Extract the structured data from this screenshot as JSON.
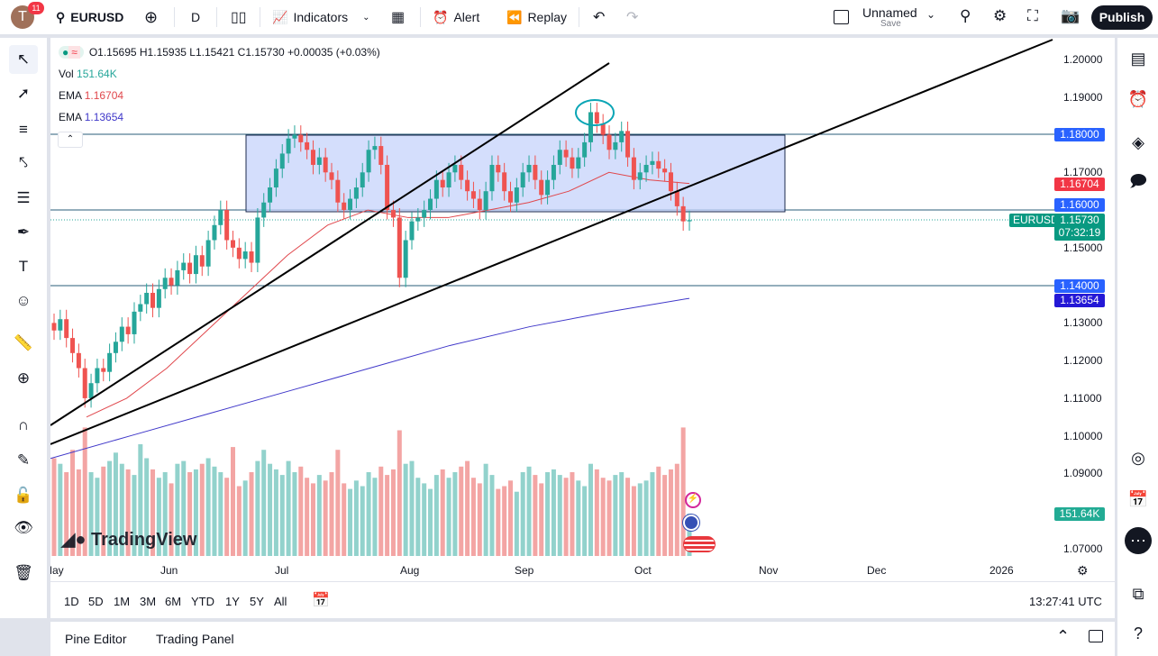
{
  "topbar": {
    "avatar_letter": "T",
    "notif_count": "11",
    "symbol": "EURUSD",
    "interval": "D",
    "indicators": "Indicators",
    "alert": "Alert",
    "replay": "Replay",
    "layout_name": "Unnamed",
    "layout_save": "Save",
    "publish": "Publish"
  },
  "legend": {
    "ohlc": "O1.15695 H1.15935 L1.15421 C1.15730 +0.00035 (+0.03%)",
    "vol_label": "Vol",
    "vol_value": "151.64K",
    "ema1_label": "EMA",
    "ema1_value": "1.16704",
    "ema2_label": "EMA",
    "ema2_value": "1.13654"
  },
  "price_axis": {
    "ticks": [
      "1.20000",
      "1.19000",
      "1.17000",
      "1.15000",
      "1.13000",
      "1.12000",
      "1.11000",
      "1.10000",
      "1.09000",
      "1.07000"
    ],
    "labels": {
      "level_118": "1.18000",
      "ema1": "1.16704",
      "level_116": "1.16000",
      "symbol_tag": "EURUSD",
      "last": "1.15730",
      "countdown": "07:32:19",
      "level_114": "1.14000",
      "ema2": "1.13654",
      "volume": "151.64K"
    }
  },
  "time_axis": {
    "ticks": [
      "May",
      "Jun",
      "Jul",
      "Aug",
      "Sep",
      "Oct",
      "Nov",
      "Dec",
      "2026"
    ]
  },
  "range_bar": {
    "ranges": [
      "1D",
      "5D",
      "1M",
      "3M",
      "6M",
      "YTD",
      "1Y",
      "5Y",
      "All"
    ],
    "clock": "13:27:41 UTC"
  },
  "bottom_panel": {
    "tabs": [
      "Pine Editor",
      "Trading Panel"
    ]
  },
  "watermark": "TradingView",
  "colors": {
    "up": "#26a69a",
    "down": "#ef5350",
    "ema1": "#e0474c",
    "ema2": "#3f37c9",
    "accent": "#2962ff",
    "rect": "#c5d3fb"
  },
  "chart_data": {
    "type": "candlestick",
    "ylim": [
      1.07,
      1.2
    ],
    "closes": [
      1.128,
      1.131,
      1.126,
      1.122,
      1.118,
      1.11,
      1.114,
      1.118,
      1.117,
      1.122,
      1.125,
      1.129,
      1.127,
      1.133,
      1.135,
      1.138,
      1.134,
      1.139,
      1.142,
      1.14,
      1.144,
      1.146,
      1.143,
      1.148,
      1.145,
      1.152,
      1.156,
      1.16,
      1.152,
      1.15,
      1.147,
      1.149,
      1.146,
      1.158,
      1.162,
      1.166,
      1.171,
      1.175,
      1.179,
      1.18,
      1.178,
      1.176,
      1.172,
      1.174,
      1.17,
      1.168,
      1.162,
      1.16,
      1.163,
      1.166,
      1.17,
      1.176,
      1.177,
      1.172,
      1.16,
      1.158,
      1.142,
      1.152,
      1.157,
      1.158,
      1.16,
      1.163,
      1.168,
      1.166,
      1.17,
      1.172,
      1.168,
      1.165,
      1.163,
      1.16,
      1.165,
      1.172,
      1.17,
      1.165,
      1.162,
      1.166,
      1.17,
      1.172,
      1.168,
      1.164,
      1.168,
      1.172,
      1.176,
      1.174,
      1.171,
      1.174,
      1.178,
      1.186,
      1.183,
      1.18,
      1.176,
      1.178,
      1.181,
      1.174,
      1.168,
      1.17,
      1.172,
      1.173,
      1.171,
      1.17,
      1.165,
      1.161,
      1.157,
      1.1573
    ],
    "volumes_k": [
      350,
      330,
      300,
      380,
      310,
      460,
      300,
      280,
      320,
      340,
      370,
      330,
      310,
      290,
      400,
      350,
      310,
      280,
      300,
      260,
      330,
      340,
      300,
      310,
      330,
      350,
      320,
      300,
      280,
      390,
      250,
      270,
      300,
      340,
      380,
      330,
      310,
      290,
      340,
      300,
      320,
      280,
      260,
      290,
      270,
      300,
      380,
      260,
      240,
      270,
      250,
      300,
      280,
      320,
      290,
      310,
      450,
      330,
      340,
      280,
      260,
      240,
      290,
      310,
      280,
      300,
      320,
      340,
      280,
      260,
      330,
      290,
      240,
      250,
      270,
      230,
      300,
      320,
      290,
      260,
      300,
      310,
      290,
      280,
      300,
      270,
      250,
      330,
      310,
      280,
      270,
      290,
      300,
      280,
      250,
      260,
      270,
      300,
      320,
      290,
      310,
      330,
      460,
      151.64
    ],
    "ema1": [
      1.105,
      1.11,
      1.118,
      1.128,
      1.138,
      1.148,
      1.156,
      1.16,
      1.158,
      1.158,
      1.16,
      1.162,
      1.165,
      1.17,
      1.168,
      1.16704
    ],
    "ema2": [
      1.094,
      1.1,
      1.106,
      1.112,
      1.118,
      1.124,
      1.129,
      1.133,
      1.13654
    ]
  }
}
